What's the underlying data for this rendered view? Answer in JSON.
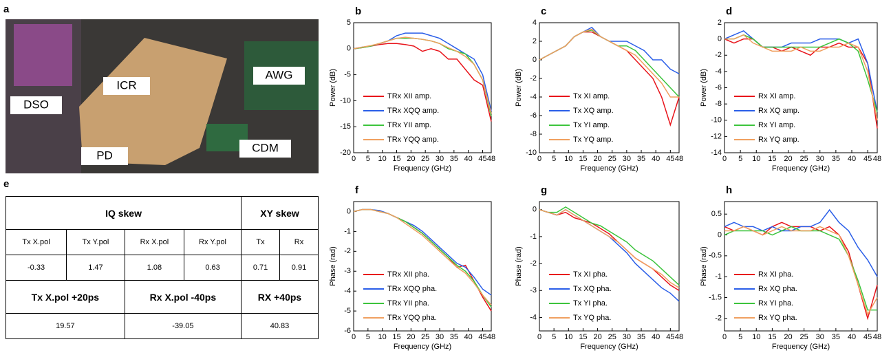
{
  "photo": {
    "label": "a",
    "tags": [
      "DSO",
      "ICR",
      "AWG",
      "PD",
      "CDM"
    ]
  },
  "table": {
    "label": "e",
    "rows": [
      [
        "IQ skew",
        "XY skew"
      ],
      [
        "Tx X.pol",
        "Tx Y.pol",
        "Rx X.pol",
        "Rx Y.pol",
        "Tx",
        "Rx"
      ],
      [
        -0.33,
        1.47,
        1.08,
        0.63,
        0.71,
        0.91
      ],
      [
        "Tx X.pol +20ps",
        "Rx X.pol -40ps",
        "RX +40ps"
      ],
      [
        19.57,
        -39.05,
        40.83
      ]
    ]
  },
  "chart_data": [
    {
      "type": "line",
      "label": "b",
      "x_label": "Frequency  (GHz)",
      "y_label": "Power (dB)",
      "x": [
        0,
        3,
        6,
        9,
        12,
        15,
        18,
        21,
        24,
        27,
        30,
        33,
        36,
        39,
        42,
        45,
        48
      ],
      "xlim": [
        0,
        48
      ],
      "xticks": [
        0,
        5,
        10,
        15,
        20,
        25,
        30,
        35,
        40,
        45,
        48
      ],
      "ylim": [
        -20,
        5
      ],
      "yticks": [
        -20,
        -15,
        -10,
        -5,
        0,
        5
      ],
      "legend": "lower left",
      "series": [
        {
          "name": "TRx XII amp.",
          "color": "#e8141b",
          "values": [
            0,
            0.2,
            0.5,
            0.8,
            1,
            1,
            0.8,
            0.5,
            -0.5,
            0,
            -0.5,
            -2,
            -2,
            -4,
            -6,
            -7,
            -14
          ]
        },
        {
          "name": "TRx XQQ amp.",
          "color": "#2a5ee8",
          "values": [
            0,
            0.3,
            0.5,
            1,
            1.5,
            2.5,
            3,
            3,
            3,
            2.5,
            2,
            1,
            0,
            -1,
            -2,
            -5,
            -12
          ]
        },
        {
          "name": "TRx YII amp.",
          "color": "#3cc43c",
          "values": [
            0,
            0.2,
            0.5,
            1,
            1.5,
            2,
            2,
            2,
            1.8,
            1.5,
            1,
            0,
            -0.5,
            -1,
            -3,
            -6,
            -13
          ]
        },
        {
          "name": "TRx YQQ amp.",
          "color": "#f0a060",
          "values": [
            0,
            0.3,
            0.6,
            1,
            1.5,
            2,
            2.2,
            2,
            1.8,
            1.5,
            1,
            0.2,
            -0.5,
            -1.5,
            -3,
            -6,
            -12.5
          ]
        }
      ]
    },
    {
      "type": "line",
      "label": "c",
      "x_label": "Frequency  (GHz)",
      "y_label": "Power (dB)",
      "x": [
        0,
        3,
        6,
        9,
        12,
        15,
        18,
        21,
        24,
        27,
        30,
        33,
        36,
        39,
        42,
        45,
        48
      ],
      "xlim": [
        0,
        48
      ],
      "xticks": [
        0,
        5,
        10,
        15,
        20,
        25,
        30,
        35,
        40,
        45,
        48
      ],
      "ylim": [
        -10,
        4
      ],
      "yticks": [
        -10,
        -8,
        -6,
        -4,
        -2,
        0,
        2,
        4
      ],
      "legend": "lower left",
      "series": [
        {
          "name": "Tx XI amp.",
          "color": "#e8141b",
          "values": [
            0,
            0.5,
            1,
            1.5,
            2.5,
            3,
            3,
            2.5,
            2,
            1.5,
            1,
            0,
            -1,
            -2,
            -4,
            -7,
            -4
          ]
        },
        {
          "name": "Tx XQ amp.",
          "color": "#2a5ee8",
          "values": [
            0,
            0.5,
            1,
            1.5,
            2.5,
            3,
            3.5,
            2.5,
            2,
            2,
            2,
            1.5,
            1,
            0,
            0,
            -1,
            -1.5
          ]
        },
        {
          "name": "Tx YI amp.",
          "color": "#3cc43c",
          "values": [
            0,
            0.5,
            1,
            1.5,
            2.5,
            3,
            3.2,
            2.5,
            2,
            1.5,
            1.5,
            1,
            0,
            -1,
            -2,
            -3,
            -4
          ]
        },
        {
          "name": "Tx YQ amp.",
          "color": "#f0a060",
          "values": [
            0,
            0.5,
            1,
            1.5,
            2.5,
            3,
            3.3,
            2.5,
            2,
            1.5,
            1,
            0.5,
            -0.5,
            -1.5,
            -2.5,
            -4,
            -4
          ]
        }
      ]
    },
    {
      "type": "line",
      "label": "d",
      "x_label": "Frequency  (GHz)",
      "y_label": "Power (dB)",
      "x": [
        0,
        3,
        6,
        9,
        12,
        15,
        18,
        21,
        24,
        27,
        30,
        33,
        36,
        39,
        42,
        45,
        48
      ],
      "xlim": [
        0,
        48
      ],
      "xticks": [
        0,
        5,
        10,
        15,
        20,
        25,
        30,
        35,
        40,
        45,
        48
      ],
      "ylim": [
        -14,
        2
      ],
      "yticks": [
        -14,
        -12,
        -10,
        -8,
        -6,
        -4,
        -2,
        0,
        2
      ],
      "legend": "lower left",
      "series": [
        {
          "name": "Rx XI amp.",
          "color": "#e8141b",
          "values": [
            0,
            -0.5,
            0,
            0,
            -1,
            -1,
            -1.5,
            -1,
            -1.5,
            -2,
            -1,
            -1,
            -0.5,
            -1,
            -1,
            -3,
            -11
          ]
        },
        {
          "name": "Rx XQ amp.",
          "color": "#2a5ee8",
          "values": [
            0,
            0.5,
            1,
            0,
            -1,
            -1,
            -1,
            -0.5,
            -0.5,
            -0.5,
            0,
            0,
            0,
            -0.5,
            0,
            -3,
            -9
          ]
        },
        {
          "name": "Rx YI amp.",
          "color": "#3cc43c",
          "values": [
            0,
            0,
            0.5,
            0,
            -1,
            -1,
            -1,
            -1,
            -1,
            -1,
            -1,
            -0.5,
            0,
            -0.5,
            -1.5,
            -5,
            -9
          ]
        },
        {
          "name": "Rx YQ amp.",
          "color": "#f0a060",
          "values": [
            0,
            0,
            0.5,
            -0.5,
            -1,
            -1.5,
            -1.5,
            -1.5,
            -1,
            -1.5,
            -1.5,
            -1,
            -1,
            -0.5,
            -1,
            -4,
            -10
          ]
        }
      ]
    },
    {
      "type": "line",
      "label": "f",
      "x_label": "Frequency  (GHz)",
      "y_label": "Phase (rad)",
      "x": [
        0,
        3,
        6,
        9,
        12,
        15,
        18,
        21,
        24,
        27,
        30,
        33,
        36,
        39,
        42,
        45,
        48
      ],
      "xlim": [
        0,
        48
      ],
      "xticks": [
        0,
        5,
        10,
        15,
        20,
        25,
        30,
        35,
        40,
        45,
        48
      ],
      "ylim": [
        -6,
        0.5
      ],
      "yticks": [
        -6,
        -5,
        -4,
        -3,
        -2,
        -1,
        0
      ],
      "legend": "lower left",
      "series": [
        {
          "name": "TRx XII pha.",
          "color": "#e8141b",
          "values": [
            0,
            0.1,
            0.1,
            0,
            -0.1,
            -0.3,
            -0.5,
            -0.8,
            -1.1,
            -1.5,
            -1.9,
            -2.3,
            -2.8,
            -2.7,
            -3.5,
            -4.3,
            -5
          ]
        },
        {
          "name": "TRx XQQ pha.",
          "color": "#2a5ee8",
          "values": [
            0,
            0.1,
            0.1,
            0.05,
            -0.1,
            -0.3,
            -0.5,
            -0.7,
            -1,
            -1.4,
            -1.8,
            -2.2,
            -2.6,
            -2.8,
            -3.3,
            -3.9,
            -4.2
          ]
        },
        {
          "name": "TRx YII pha.",
          "color": "#3cc43c",
          "values": [
            0,
            0.1,
            0.1,
            0,
            -0.1,
            -0.3,
            -0.5,
            -0.8,
            -1.1,
            -1.5,
            -1.9,
            -2.3,
            -2.7,
            -3,
            -3.5,
            -4.2,
            -4.8
          ]
        },
        {
          "name": "TRx YQQ pha.",
          "color": "#f0a060",
          "values": [
            0,
            0.1,
            0.1,
            0,
            -0.1,
            -0.3,
            -0.6,
            -0.9,
            -1.2,
            -1.6,
            -2,
            -2.4,
            -2.8,
            -3.1,
            -3.6,
            -4.2,
            -4.7
          ]
        }
      ]
    },
    {
      "type": "line",
      "label": "g",
      "x_label": "Frequency  (GHz)",
      "y_label": "Phase (rad)",
      "x": [
        0,
        3,
        6,
        9,
        12,
        15,
        18,
        21,
        24,
        27,
        30,
        33,
        36,
        39,
        42,
        45,
        48
      ],
      "xlim": [
        0,
        48
      ],
      "xticks": [
        0,
        5,
        10,
        15,
        20,
        25,
        30,
        35,
        40,
        45,
        48
      ],
      "ylim": [
        -4.5,
        0.3
      ],
      "yticks": [
        -4,
        -3,
        -2,
        -1,
        0
      ],
      "legend": "lower left",
      "series": [
        {
          "name": "Tx XI pha.",
          "color": "#e8141b",
          "values": [
            0,
            -0.1,
            -0.2,
            -0.1,
            -0.3,
            -0.4,
            -0.5,
            -0.7,
            -0.9,
            -1.2,
            -1.5,
            -1.8,
            -2,
            -2.2,
            -2.5,
            -2.8,
            -3
          ]
        },
        {
          "name": "Tx XQ pha.",
          "color": "#2a5ee8",
          "values": [
            0,
            -0.1,
            -0.2,
            0,
            -0.2,
            -0.4,
            -0.6,
            -0.8,
            -1,
            -1.3,
            -1.6,
            -2,
            -2.3,
            -2.6,
            -2.9,
            -3.1,
            -3.4
          ]
        },
        {
          "name": "Tx YI pha.",
          "color": "#3cc43c",
          "values": [
            0,
            -0.1,
            -0.1,
            0.1,
            -0.1,
            -0.3,
            -0.5,
            -0.6,
            -0.8,
            -1,
            -1.2,
            -1.5,
            -1.7,
            -1.9,
            -2.2,
            -2.5,
            -2.8
          ]
        },
        {
          "name": "Tx YQ pha.",
          "color": "#f0a060",
          "values": [
            0,
            -0.1,
            -0.2,
            0,
            -0.2,
            -0.4,
            -0.6,
            -0.8,
            -1,
            -1.2,
            -1.5,
            -1.8,
            -2,
            -2.2,
            -2.4,
            -2.7,
            -2.9
          ]
        }
      ]
    },
    {
      "type": "line",
      "label": "h",
      "x_label": "Frequency  (GHz)",
      "y_label": "Phase (rad)",
      "x": [
        0,
        3,
        6,
        9,
        12,
        15,
        18,
        21,
        24,
        27,
        30,
        33,
        36,
        39,
        42,
        45,
        48
      ],
      "xlim": [
        0,
        48
      ],
      "xticks": [
        0,
        5,
        10,
        15,
        20,
        25,
        30,
        35,
        40,
        45,
        48
      ],
      "ylim": [
        -2.3,
        0.8
      ],
      "yticks": [
        -2,
        -1.5,
        -1,
        -0.5,
        0,
        0.5
      ],
      "legend": "lower left",
      "series": [
        {
          "name": "Rx XI pha.",
          "color": "#e8141b",
          "values": [
            0.2,
            0.1,
            0.2,
            0.1,
            0,
            0.2,
            0.3,
            0.2,
            0.2,
            0.2,
            0.1,
            0.2,
            0,
            -0.4,
            -1.2,
            -2,
            -1.2
          ]
        },
        {
          "name": "Rx XQ pha.",
          "color": "#2a5ee8",
          "values": [
            0.2,
            0.3,
            0.2,
            0.2,
            0.1,
            0.2,
            0.1,
            0.1,
            0.2,
            0.2,
            0.3,
            0.6,
            0.3,
            0.1,
            -0.3,
            -0.6,
            -1
          ]
        },
        {
          "name": "Rx YI pha.",
          "color": "#3cc43c",
          "values": [
            0,
            0.1,
            0.1,
            0.1,
            0.1,
            0,
            0.1,
            0.2,
            0.1,
            0.1,
            0.1,
            0,
            -0.1,
            -0.5,
            -1.1,
            -1.8,
            -1.8
          ]
        },
        {
          "name": "Rx YQ pha.",
          "color": "#f0a060",
          "values": [
            0.1,
            0.1,
            0.2,
            0.1,
            0,
            0.1,
            0.2,
            0.1,
            0.1,
            0.1,
            0.2,
            0.1,
            0,
            -0.5,
            -1.2,
            -1.9,
            -1.5
          ]
        }
      ]
    }
  ]
}
